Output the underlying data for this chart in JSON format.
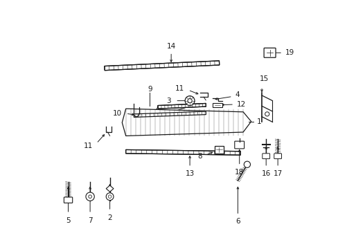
{
  "background_color": "#ffffff",
  "figsize": [
    4.89,
    3.6
  ],
  "dpi": 100,
  "gray": "#1a1a1a"
}
